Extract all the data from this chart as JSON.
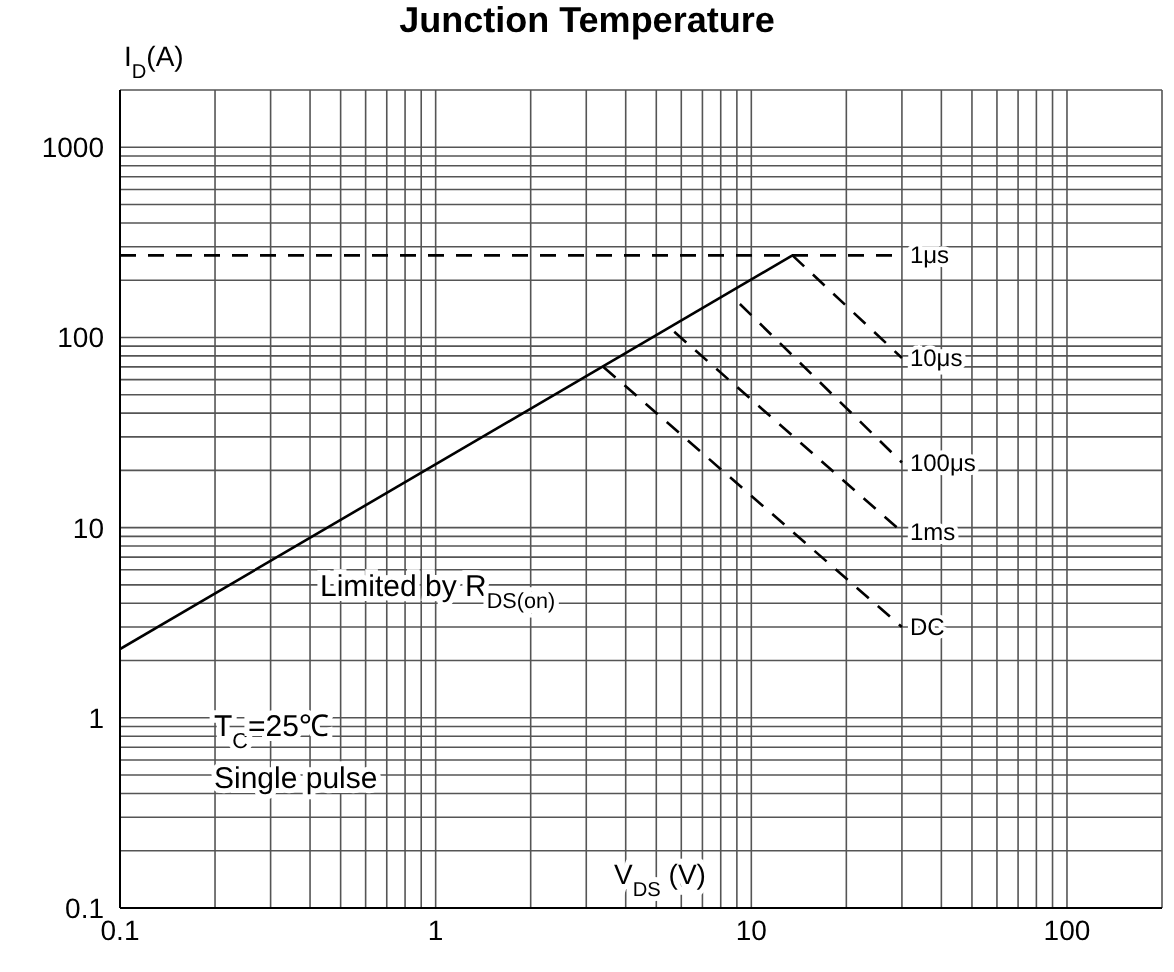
{
  "chart_data": {
    "type": "line",
    "title": "Junction Temperature",
    "xlabel": "V$_{DS}$ (V)",
    "ylabel": "I$_{D}$(A)",
    "log": "xy",
    "grid": true,
    "marker": "none",
    "xlim": [
      0.1,
      200
    ],
    "ylim": [
      0.1,
      2000
    ],
    "xticks": [
      0.1,
      {
        "value": 0.2,
        "label": null
      },
      {
        "value": 0.3,
        "label": null
      },
      {
        "value": 0.4,
        "label": null
      },
      {
        "value": 0.5,
        "label": null
      },
      {
        "value": 0.6,
        "label": null
      },
      {
        "value": 0.7,
        "label": null
      },
      {
        "value": 0.8,
        "label": null
      },
      {
        "value": 0.9,
        "label": null
      },
      1,
      {
        "value": 2,
        "label": null
      },
      {
        "value": 3,
        "label": null
      },
      {
        "value": 4,
        "label": null
      },
      {
        "value": 5,
        "label": null
      },
      {
        "value": 6,
        "label": null
      },
      {
        "value": 7,
        "label": null
      },
      {
        "value": 8,
        "label": null
      },
      {
        "value": 9,
        "label": null
      },
      10,
      {
        "value": 20,
        "label": null
      },
      {
        "value": 30,
        "label": null
      },
      {
        "value": 40,
        "label": null
      },
      {
        "value": 50,
        "label": null
      },
      {
        "value": 60,
        "label": null
      },
      {
        "value": 70,
        "label": null
      },
      {
        "value": 80,
        "label": null
      },
      {
        "value": 90,
        "label": null
      },
      100,
      {
        "value": 200,
        "label": null
      }
    ],
    "yticks": [
      0.1,
      {
        "value": 0.2,
        "label": null
      },
      {
        "value": 0.3,
        "label": null
      },
      {
        "value": 0.4,
        "label": null
      },
      {
        "value": 0.5,
        "label": null
      },
      {
        "value": 0.6,
        "label": null
      },
      {
        "value": 0.7,
        "label": null
      },
      {
        "value": 0.8,
        "label": null
      },
      {
        "value": 0.9,
        "label": null
      },
      1,
      {
        "value": 2,
        "label": null
      },
      {
        "value": 3,
        "label": null
      },
      {
        "value": 4,
        "label": null
      },
      {
        "value": 5,
        "label": null
      },
      {
        "value": 6,
        "label": null
      },
      {
        "value": 7,
        "label": null
      },
      {
        "value": 8,
        "label": null
      },
      {
        "value": 9,
        "label": null
      },
      10,
      {
        "value": 20,
        "label": null
      },
      {
        "value": 30,
        "label": null
      },
      {
        "value": 40,
        "label": null
      },
      {
        "value": 50,
        "label": null
      },
      {
        "value": 60,
        "label": null
      },
      {
        "value": 70,
        "label": null
      },
      {
        "value": 80,
        "label": null
      },
      {
        "value": 90,
        "label": null
      },
      100,
      {
        "value": 200,
        "label": null
      },
      {
        "value": 300,
        "label": null
      },
      {
        "value": 400,
        "label": null
      },
      {
        "value": 500,
        "label": null
      },
      {
        "value": 600,
        "label": null
      },
      {
        "value": 700,
        "label": null
      },
      {
        "value": 800,
        "label": null
      },
      {
        "value": 900,
        "label": null
      },
      1000,
      {
        "value": 2000,
        "label": null
      }
    ],
    "series": [
      {
        "color": "#000000",
        "line_style": "solid",
        "x": [
          0.1,
          13.5
        ],
        "values": [
          2.3,
          270
        ]
      },
      {
        "name": "1μs",
        "color": "#000000",
        "line_style": "dashed",
        "x": [
          0.1,
          30
        ],
        "values": [
          270,
          270
        ]
      },
      {
        "name": "10μs",
        "color": "#000000",
        "line_style": "dashed",
        "x": [
          13.5,
          30
        ],
        "values": [
          270,
          78
        ]
      },
      {
        "name": "100μs",
        "color": "#000000",
        "line_style": "dashed",
        "x": [
          9.2,
          30
        ],
        "values": [
          150,
          22
        ]
      },
      {
        "name": "1ms",
        "color": "#000000",
        "line_style": "dashed",
        "x": [
          5.7,
          30
        ],
        "values": [
          107,
          9.5
        ]
      },
      {
        "name": "DC",
        "color": "#000000",
        "line_style": "dashed",
        "x": [
          3.4,
          30
        ],
        "values": [
          70,
          3
        ]
      }
    ],
    "annotations": [
      "Limited by R$_{DS(on)}$",
      "T$_{C}$=25℃",
      "Single pulse"
    ]
  }
}
